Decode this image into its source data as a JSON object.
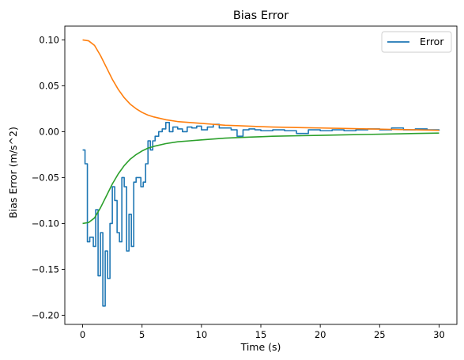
{
  "chart_data": {
    "type": "line",
    "title": "Bias Error",
    "xlabel": "Time (s)",
    "ylabel": "Bias Error (m/s^2)",
    "xlim": [
      -1.5,
      31.5
    ],
    "ylim": [
      -0.21,
      0.115
    ],
    "x_ticks": [
      0,
      5,
      10,
      15,
      20,
      25,
      30
    ],
    "x_tick_labels": [
      "0",
      "5",
      "10",
      "15",
      "20",
      "25",
      "30"
    ],
    "y_ticks": [
      0.1,
      0.05,
      0.0,
      -0.05,
      -0.1,
      -0.15,
      -0.2
    ],
    "y_tick_labels": [
      "0.10",
      "0.05",
      "0.00",
      "−0.05",
      "−0.10",
      "−0.15",
      "−0.20"
    ],
    "grid": false,
    "legend_position": "top-right",
    "series": [
      {
        "name": "Error",
        "color": "#1f77b4",
        "style": "step",
        "x": [
          0,
          0.2,
          0.4,
          0.6,
          0.9,
          1.1,
          1.3,
          1.5,
          1.7,
          1.9,
          2.1,
          2.3,
          2.5,
          2.7,
          2.9,
          3.1,
          3.3,
          3.5,
          3.7,
          3.9,
          4.1,
          4.3,
          4.5,
          4.7,
          4.9,
          5.1,
          5.3,
          5.5,
          5.7,
          5.9,
          6.1,
          6.4,
          6.7,
          7.0,
          7.3,
          7.6,
          8.0,
          8.4,
          8.8,
          9.2,
          9.6,
          10.0,
          10.5,
          11.0,
          11.5,
          12.0,
          12.5,
          13.0,
          13.5,
          14.0,
          14.5,
          15.0,
          16.0,
          17.0,
          18.0,
          19.0,
          20.0,
          21.0,
          22.0,
          23.0,
          24.0,
          25.0,
          26.0,
          27.0,
          28.0,
          29.0,
          30.0
        ],
        "y": [
          -0.02,
          -0.035,
          -0.12,
          -0.115,
          -0.125,
          -0.085,
          -0.157,
          -0.11,
          -0.19,
          -0.13,
          -0.16,
          -0.1,
          -0.06,
          -0.075,
          -0.11,
          -0.12,
          -0.05,
          -0.06,
          -0.13,
          -0.09,
          -0.125,
          -0.055,
          -0.05,
          -0.05,
          -0.06,
          -0.055,
          -0.035,
          -0.01,
          -0.02,
          -0.01,
          -0.005,
          0.0,
          0.003,
          0.01,
          0.0,
          0.005,
          0.003,
          0.0,
          0.005,
          0.004,
          0.006,
          0.002,
          0.005,
          0.008,
          0.004,
          0.004,
          0.002,
          -0.005,
          0.002,
          0.003,
          0.002,
          0.001,
          0.002,
          0.001,
          -0.002,
          0.002,
          0.001,
          0.002,
          0.001,
          0.002,
          0.003,
          0.002,
          0.004,
          0.002,
          0.003,
          0.002,
          0.001
        ]
      },
      {
        "color": "#ff7f0e",
        "style": "line",
        "x": [
          0,
          0.5,
          1,
          1.5,
          2,
          2.5,
          3,
          3.5,
          4,
          4.5,
          5,
          5.5,
          6,
          7,
          8,
          9,
          10,
          11,
          12,
          13,
          14,
          15,
          16,
          18,
          20,
          22,
          24,
          26,
          28,
          30
        ],
        "y": [
          0.1,
          0.099,
          0.094,
          0.083,
          0.07,
          0.057,
          0.046,
          0.037,
          0.03,
          0.025,
          0.021,
          0.018,
          0.016,
          0.013,
          0.011,
          0.01,
          0.009,
          0.008,
          0.007,
          0.0065,
          0.006,
          0.0055,
          0.005,
          0.0045,
          0.004,
          0.0035,
          0.003,
          0.0025,
          0.002,
          0.0015
        ]
      },
      {
        "color": "#2ca02c",
        "style": "line",
        "x": [
          0,
          0.5,
          1,
          1.5,
          2,
          2.5,
          3,
          3.5,
          4,
          4.5,
          5,
          5.5,
          6,
          7,
          8,
          9,
          10,
          11,
          12,
          13,
          14,
          15,
          16,
          18,
          20,
          22,
          24,
          26,
          28,
          30
        ],
        "y": [
          -0.1,
          -0.099,
          -0.094,
          -0.083,
          -0.07,
          -0.057,
          -0.046,
          -0.037,
          -0.03,
          -0.025,
          -0.021,
          -0.018,
          -0.016,
          -0.013,
          -0.011,
          -0.01,
          -0.009,
          -0.008,
          -0.007,
          -0.0065,
          -0.006,
          -0.0055,
          -0.005,
          -0.0045,
          -0.004,
          -0.0035,
          -0.003,
          -0.0025,
          -0.002,
          -0.0015
        ]
      }
    ]
  }
}
